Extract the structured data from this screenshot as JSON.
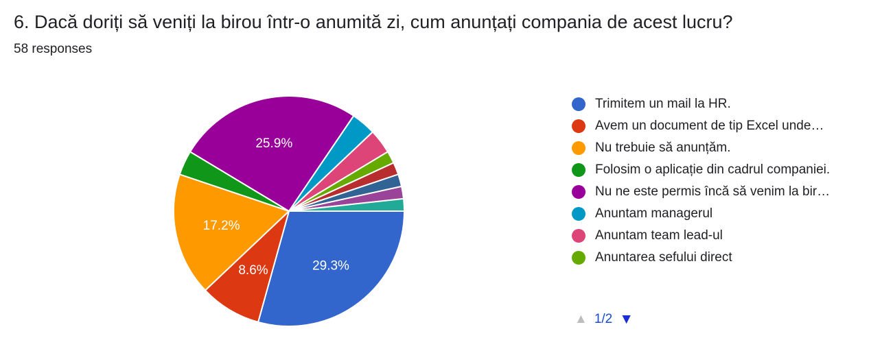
{
  "question": {
    "title": "6. Dacă doriți să veniți la birou într-o anumită zi, cum anunțați compania de acest lucru?",
    "responses": "58 responses"
  },
  "chart_data": {
    "type": "pie",
    "total_responses": 58,
    "slices": [
      {
        "label": "Trimitem un mail la HR.",
        "legend_text": "Trimitem un mail la HR.",
        "count": 17,
        "percent_label": "29.3%",
        "color": "#3366cc"
      },
      {
        "label": "Avem un document de tip Excel unde…",
        "legend_text": "Avem un document de tip Excel unde…",
        "count": 5,
        "percent_label": "8.6%",
        "color": "#dc3912"
      },
      {
        "label": "Nu trebuie să anunțăm.",
        "legend_text": "Nu trebuie să anunțăm.",
        "count": 10,
        "percent_label": "17.2%",
        "color": "#ff9900"
      },
      {
        "label": "Folosim o aplicație din cadrul companiei.",
        "legend_text": "Folosim o aplicație din cadrul companiei.",
        "count": 2,
        "percent_label": "",
        "color": "#109618"
      },
      {
        "label": "Nu ne este permis încă să venim la bir…",
        "legend_text": "Nu ne este permis încă să venim la bir…",
        "count": 15,
        "percent_label": "25.9%",
        "color": "#990099"
      },
      {
        "label": "Anuntam managerul",
        "legend_text": "Anuntam managerul",
        "count": 2,
        "percent_label": "",
        "color": "#0099c6"
      },
      {
        "label": "Anuntam team lead-ul",
        "legend_text": "Anuntam team lead-ul",
        "count": 2,
        "percent_label": "",
        "color": "#dd4477"
      },
      {
        "label": "Anuntarea sefului direct",
        "legend_text": "Anuntarea sefului direct",
        "count": 1,
        "percent_label": "",
        "color": "#66aa00"
      },
      {
        "label": "",
        "count": 1,
        "percent_label": "",
        "color": "#b82e2e"
      },
      {
        "label": "",
        "count": 1,
        "percent_label": "",
        "color": "#316395"
      },
      {
        "label": "",
        "count": 1,
        "percent_label": "",
        "color": "#994499"
      },
      {
        "label": "",
        "count": 1,
        "percent_label": "",
        "color": "#22aa99"
      }
    ],
    "legend_placement": "right"
  },
  "legend_pager": {
    "label": "1/2",
    "prev_icon": "triangle-up-icon",
    "next_icon": "triangle-down-icon",
    "prev_color": "#bdbdbd",
    "next_color": "#1a2fd1"
  }
}
